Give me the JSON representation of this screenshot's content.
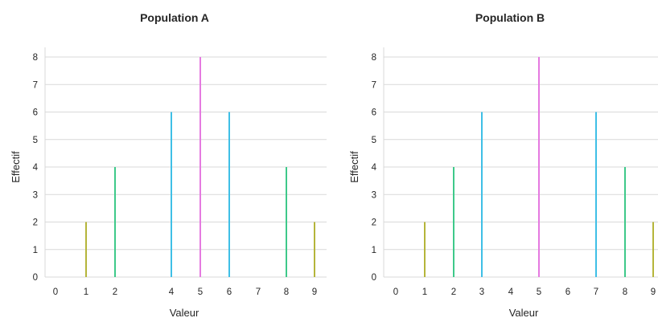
{
  "chart_data": [
    {
      "type": "bar",
      "title": "Population A",
      "xlabel": "Valeur",
      "ylabel": "Effectif",
      "x_ticks": [
        "0",
        "1",
        "2",
        "4",
        "5",
        "6",
        "7",
        "8",
        "9"
      ],
      "y_ticks": [
        "0",
        "1",
        "2",
        "3",
        "4",
        "5",
        "6",
        "7",
        "8"
      ],
      "ylim": [
        0,
        8
      ],
      "grid": "horizontal",
      "categories": [
        "1",
        "2",
        "4",
        "5",
        "6",
        "8",
        "9"
      ],
      "values": [
        2,
        4,
        6,
        8,
        6,
        4,
        2
      ],
      "colors": [
        "#b5b53a",
        "#3ec98a",
        "#3fbfe6",
        "#e57ae0",
        "#3fbfe6",
        "#3ec98a",
        "#b5b53a"
      ]
    },
    {
      "type": "bar",
      "title": "Population B",
      "xlabel": "Valeur",
      "ylabel": "Effectif",
      "x_ticks": [
        "0",
        "1",
        "2",
        "3",
        "4",
        "5",
        "6",
        "7",
        "8",
        "9"
      ],
      "y_ticks": [
        "0",
        "1",
        "2",
        "3",
        "4",
        "5",
        "6",
        "7",
        "8"
      ],
      "ylim": [
        0,
        8
      ],
      "grid": "horizontal",
      "categories": [
        "1",
        "2",
        "3",
        "5",
        "7",
        "8",
        "9"
      ],
      "values": [
        2,
        4,
        6,
        8,
        6,
        4,
        2
      ],
      "colors": [
        "#b5b53a",
        "#3ec98a",
        "#3fbfe6",
        "#e57ae0",
        "#3fbfe6",
        "#3ec98a",
        "#b5b53a"
      ]
    }
  ]
}
